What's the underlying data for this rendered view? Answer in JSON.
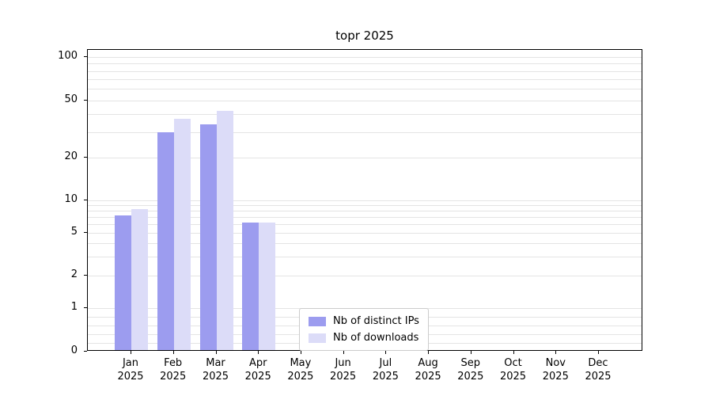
{
  "title": "topr 2025",
  "chart_data": {
    "type": "bar",
    "title": "topr 2025",
    "scale": "symlog",
    "ylim": [
      0,
      100
    ],
    "grid": true,
    "legend_position": "lower center",
    "categories": [
      "Jan",
      "Feb",
      "Mar",
      "Apr",
      "May",
      "Jun",
      "Jul",
      "Aug",
      "Sep",
      "Oct",
      "Nov",
      "Dec"
    ],
    "year_label": "2025",
    "yticks": [
      0,
      1,
      2,
      5,
      10,
      20,
      50,
      100
    ],
    "gridlines": [
      0.2,
      0.4,
      0.6,
      0.8,
      1,
      2,
      3,
      4,
      5,
      6,
      7,
      8,
      9,
      10,
      20,
      30,
      40,
      50,
      60,
      70,
      80,
      90,
      100
    ],
    "series": [
      {
        "name": "Nb of distinct IPs",
        "color": "#9c9cef",
        "values": [
          7,
          29,
          33,
          6,
          0,
          0,
          0,
          0,
          0,
          0,
          0,
          0
        ]
      },
      {
        "name": "Nb of downloads",
        "color": "#dcdcf8",
        "values": [
          8,
          36,
          41,
          6,
          0,
          0,
          0,
          0,
          0,
          0,
          0,
          0
        ]
      }
    ]
  }
}
